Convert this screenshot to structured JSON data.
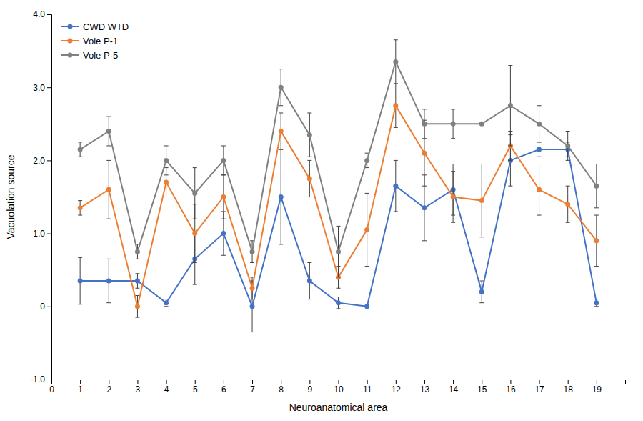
{
  "chart_data": {
    "type": "line",
    "x_label": "Neuroanatomical area",
    "y_label": "Vacuolation source",
    "x": [
      1,
      2,
      3,
      4,
      5,
      6,
      7,
      8,
      9,
      10,
      11,
      12,
      13,
      14,
      15,
      16,
      17,
      18,
      19
    ],
    "series": [
      {
        "name": "CWD WTD",
        "color": "#4472C4",
        "values": [
          0.35,
          0.35,
          0.35,
          0.05,
          0.65,
          1.0,
          0.0,
          1.5,
          0.35,
          0.05,
          0.0,
          1.65,
          1.35,
          1.6,
          0.2,
          2.0,
          2.15,
          2.15,
          0.05
        ],
        "errors": [
          0.32,
          0.3,
          0.1,
          0.05,
          0.35,
          0.3,
          0.35,
          0.65,
          0.25,
          0.08,
          0.0,
          0.35,
          0.45,
          0.35,
          0.15,
          0.35,
          0.1,
          0.1,
          0.05
        ]
      },
      {
        "name": "Vole P-1",
        "color": "#ED7D31",
        "values": [
          1.35,
          1.6,
          0.0,
          1.7,
          1.0,
          1.5,
          0.25,
          2.4,
          1.75,
          0.4,
          1.05,
          2.75,
          2.1,
          1.5,
          1.45,
          2.2,
          1.6,
          1.4,
          0.9
        ],
        "errors": [
          0.1,
          0.4,
          0.15,
          0.2,
          0.4,
          0.3,
          0.15,
          0.25,
          0.25,
          0.15,
          0.5,
          0.3,
          0.45,
          0.35,
          0.5,
          0.2,
          0.35,
          0.25,
          0.35
        ]
      },
      {
        "name": "Vole P-5",
        "color": "#808080",
        "values": [
          2.15,
          2.4,
          0.75,
          2.0,
          1.55,
          2.0,
          0.75,
          3.0,
          2.35,
          0.75,
          2.0,
          3.35,
          2.5,
          2.5,
          2.5,
          2.75,
          2.5,
          2.2,
          1.65
        ],
        "errors": [
          0.1,
          0.2,
          0.1,
          0.2,
          0.35,
          0.2,
          0.15,
          0.25,
          0.3,
          0.35,
          0.1,
          0.3,
          0.2,
          0.2,
          0.0,
          0.55,
          0.25,
          0.2,
          0.3
        ]
      }
    ],
    "xlim": [
      0,
      20
    ],
    "xticks": [
      0,
      1,
      2,
      3,
      4,
      5,
      6,
      7,
      8,
      9,
      10,
      11,
      12,
      13,
      14,
      15,
      16,
      17,
      18,
      19
    ],
    "ylim": [
      -1,
      4
    ],
    "yticks": [
      {
        "value": -1,
        "label": "-1.0"
      },
      0,
      {
        "value": 1,
        "label": "1.0"
      },
      {
        "value": 2,
        "label": "2.0"
      },
      {
        "value": 3,
        "label": "3.0"
      },
      {
        "value": 4,
        "label": "4.0"
      }
    ],
    "marker": "circle",
    "legend": "upper left",
    "grid": false
  }
}
